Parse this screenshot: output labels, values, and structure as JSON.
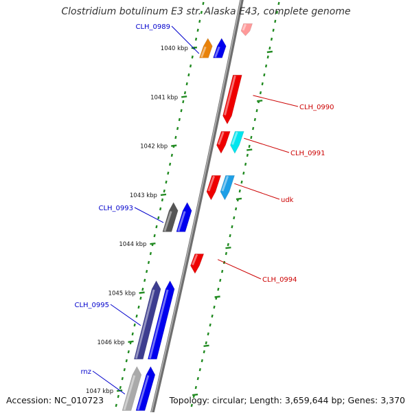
{
  "title": "Clostridium botulinum E3 str. Alaska E43, complete genome",
  "accession": "Accession: NC_010723",
  "topology": "Topology: circular; Length: 3,659,644 bp; Genes: 3,370",
  "ticks": [
    {
      "label": "1040 kbp",
      "pos": 1040
    },
    {
      "label": "1041 kbp",
      "pos": 1041
    },
    {
      "label": "1042 kbp",
      "pos": 1042
    },
    {
      "label": "1043 kbp",
      "pos": 1043
    },
    {
      "label": "1044 kbp",
      "pos": 1044
    },
    {
      "label": "1045 kbp",
      "pos": 1045
    },
    {
      "label": "1046 kbp",
      "pos": 1046
    },
    {
      "label": "1047 kbp",
      "pos": 1047
    }
  ],
  "genes": [
    {
      "name": "CLH_0989",
      "strand": "forward",
      "start": 1039.8,
      "end": 1040.2,
      "color": "#e8820a",
      "labeled": true
    },
    {
      "name": "",
      "strand": "forward",
      "start": 1039.8,
      "end": 1040.2,
      "color": "#0000ee",
      "labeled": false
    },
    {
      "name": "",
      "strand": "reverse",
      "start": 1039.5,
      "end": 1039.75,
      "color": "#ff9999",
      "labeled": false
    },
    {
      "name": "CLH_0990",
      "strand": "reverse",
      "start": 1040.55,
      "end": 1041.55,
      "color": "#ee0000",
      "labeled": true
    },
    {
      "name": "CLH_0991",
      "strand": "reverse",
      "start": 1041.7,
      "end": 1042.15,
      "color": "#ee0000",
      "labeled": true
    },
    {
      "name": "",
      "strand": "reverse",
      "start": 1041.7,
      "end": 1042.15,
      "color": "#00e5ee",
      "labeled": false
    },
    {
      "name": "udk",
      "strand": "reverse",
      "start": 1042.6,
      "end": 1043.1,
      "color": "#ee0000",
      "labeled": true
    },
    {
      "name": "",
      "strand": "reverse",
      "start": 1042.6,
      "end": 1043.1,
      "color": "#1e9fe6",
      "labeled": false
    },
    {
      "name": "CLH_0993",
      "strand": "forward",
      "start": 1043.15,
      "end": 1043.75,
      "color": "#555555",
      "labeled": true
    },
    {
      "name": "",
      "strand": "forward",
      "start": 1043.15,
      "end": 1043.75,
      "color": "#0000ee",
      "labeled": false
    },
    {
      "name": "CLH_0994",
      "strand": "reverse",
      "start": 1044.2,
      "end": 1044.6,
      "color": "#ee0000",
      "labeled": true
    },
    {
      "name": "CLH_0995",
      "strand": "forward",
      "start": 1044.75,
      "end": 1046.35,
      "color": "#3d3d8f",
      "labeled": true
    },
    {
      "name": "",
      "strand": "forward",
      "start": 1044.75,
      "end": 1046.35,
      "color": "#0000ee",
      "labeled": false
    },
    {
      "name": "rnz",
      "strand": "forward",
      "start": 1046.5,
      "end": 1047.4,
      "color": "#aaaaaa",
      "labeled": true
    },
    {
      "name": "",
      "strand": "forward",
      "start": 1046.5,
      "end": 1047.4,
      "color": "#0000ee",
      "labeled": false
    }
  ],
  "colors": {
    "forward_label": "#0000cc",
    "reverse_label": "#cc0000",
    "tick_green": "#228b22",
    "backbone": "#888888"
  }
}
